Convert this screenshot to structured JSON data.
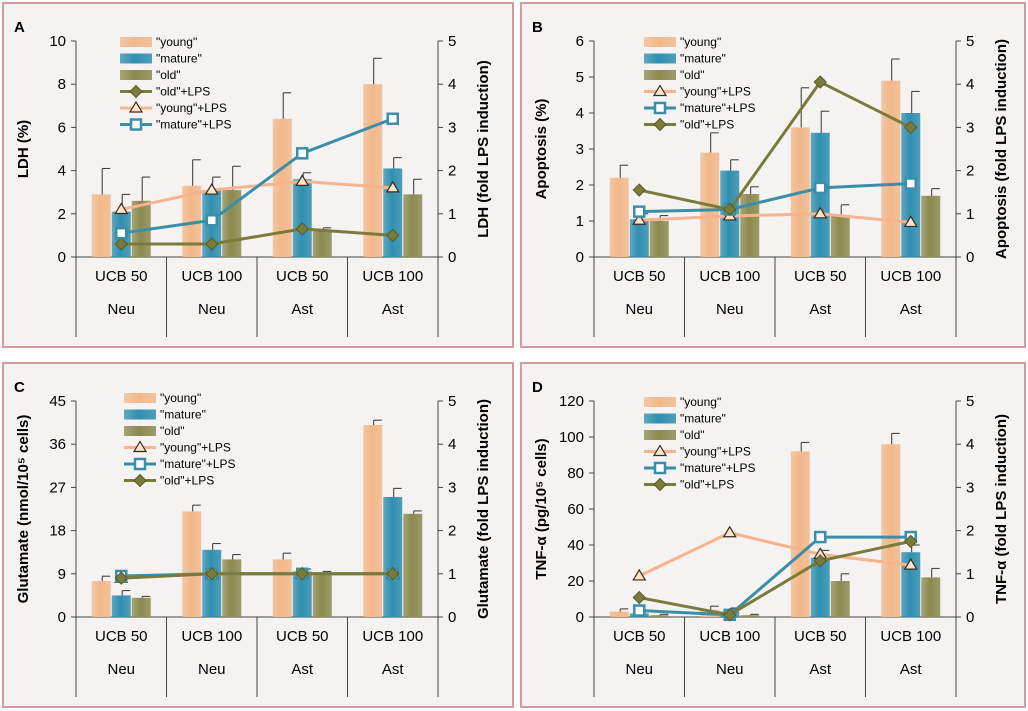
{
  "colors": {
    "young": "#f2b88a",
    "mature": "#2f8fb0",
    "old": "#8c8a4f",
    "young_lps": "#f6b48e",
    "mature_lps": "#3b8ea8",
    "old_lps": "#7a7a3a",
    "border": "#d79a9a"
  },
  "chart_data": [
    {
      "id": "A",
      "type": "bar+line",
      "ylabel": "LDH (%)",
      "y2label": "LDH (fold LPS induction)",
      "ylim": [
        0,
        10
      ],
      "yticks": [
        0,
        2,
        4,
        6,
        8,
        10
      ],
      "y2lim": [
        0,
        5
      ],
      "y2ticks": [
        0,
        1,
        2,
        3,
        4,
        5
      ],
      "categories": [
        "UCB 50",
        "UCB 100",
        "UCB 50",
        "UCB 100"
      ],
      "groups": [
        "Neu",
        "Neu",
        "Ast",
        "Ast"
      ],
      "bars": [
        {
          "name": "\"young\"",
          "values": [
            2.9,
            3.3,
            6.4,
            8.0
          ],
          "errors": [
            1.2,
            1.2,
            1.2,
            1.2
          ]
        },
        {
          "name": "\"mature\"",
          "values": [
            2.1,
            3.1,
            3.6,
            4.1
          ],
          "errors": [
            0.8,
            0.6,
            0.3,
            0.5
          ]
        },
        {
          "name": "\"old\"",
          "values": [
            2.6,
            3.1,
            1.2,
            2.9
          ],
          "errors": [
            1.1,
            1.1,
            0.15,
            0.7
          ]
        }
      ],
      "lines": [
        {
          "name": "\"old\"+LPS",
          "style": "old",
          "values": [
            0.3,
            0.3,
            0.65,
            0.5
          ]
        },
        {
          "name": "\"young\"+LPS",
          "style": "young",
          "values": [
            1.1,
            1.55,
            1.75,
            1.6
          ]
        },
        {
          "name": "\"mature\"+LPS",
          "style": "mature",
          "values": [
            0.55,
            0.85,
            2.4,
            3.2
          ]
        }
      ]
    },
    {
      "id": "B",
      "type": "bar+line",
      "ylabel": "Apoptosis (%)",
      "y2label": "Apoptosis  (fold LPS induction)",
      "ylim": [
        0,
        6
      ],
      "yticks": [
        0,
        1,
        2,
        3,
        4,
        5,
        6
      ],
      "y2lim": [
        0,
        5
      ],
      "y2ticks": [
        0,
        1,
        2,
        3,
        4,
        5
      ],
      "categories": [
        "UCB 50",
        "UCB 100",
        "UCB 50",
        "UCB 100"
      ],
      "groups": [
        "Neu",
        "Neu",
        "Ast",
        "Ast"
      ],
      "bars": [
        {
          "name": "\"young\"",
          "values": [
            2.2,
            2.9,
            3.6,
            4.9
          ],
          "errors": [
            0.35,
            0.55,
            1.1,
            0.6
          ]
        },
        {
          "name": "\"mature\"",
          "values": [
            1.05,
            2.4,
            3.45,
            4.0
          ],
          "errors": [
            0.15,
            0.3,
            0.6,
            0.6
          ]
        },
        {
          "name": "\"old\"",
          "values": [
            1.0,
            1.75,
            1.15,
            1.7
          ],
          "errors": [
            0.15,
            0.2,
            0.3,
            0.2
          ]
        }
      ],
      "lines": [
        {
          "name": "\"young\"+LPS",
          "style": "young",
          "values": [
            0.85,
            0.95,
            1.0,
            0.8
          ]
        },
        {
          "name": "\"mature\"+LPS",
          "style": "mature",
          "values": [
            1.05,
            1.1,
            1.6,
            1.7
          ]
        },
        {
          "name": "\"old\"+LPS",
          "style": "old",
          "values": [
            1.55,
            1.1,
            4.05,
            3.0
          ]
        }
      ]
    },
    {
      "id": "C",
      "type": "bar+line",
      "ylabel": "Glutamate (nmol/10⁵ cells)",
      "y2label": "Glutamate (fold LPS induction)",
      "ylim": [
        0,
        45
      ],
      "yticks": [
        0,
        9,
        18,
        27,
        36,
        45
      ],
      "y2lim": [
        0,
        5
      ],
      "y2ticks": [
        0,
        1,
        2,
        3,
        4,
        5
      ],
      "categories": [
        "UCB 50",
        "UCB 100",
        "UCB 50",
        "UCB 100"
      ],
      "groups": [
        "Neu",
        "Neu",
        "Ast",
        "Ast"
      ],
      "bars": [
        {
          "name": "\"young\"",
          "values": [
            7.5,
            22,
            12,
            40
          ],
          "errors": [
            1.0,
            1.3,
            1.3,
            1.0
          ]
        },
        {
          "name": "\"mature\"",
          "values": [
            4.5,
            14,
            9.5,
            25
          ],
          "errors": [
            1.0,
            1.3,
            0.5,
            1.8
          ]
        },
        {
          "name": "\"old\"",
          "values": [
            4,
            12,
            9.2,
            21.5
          ],
          "errors": [
            0.3,
            1.0,
            0.3,
            0.6
          ]
        }
      ],
      "lines": [
        {
          "name": "\"young\"+LPS",
          "style": "young",
          "values": [
            0.9,
            1.0,
            1.0,
            1.0
          ]
        },
        {
          "name": "\"mature\"+LPS",
          "style": "mature",
          "values": [
            0.95,
            1.0,
            1.0,
            1.0
          ]
        },
        {
          "name": "\"old\"+LPS",
          "style": "old",
          "values": [
            0.9,
            1.0,
            1.0,
            1.0
          ]
        }
      ]
    },
    {
      "id": "D",
      "type": "bar+line",
      "ylabel": "TNF-α (pg/10⁵ cells)",
      "y2label": "TNF-α (fold LPS induction)",
      "ylim": [
        0,
        120
      ],
      "yticks": [
        0,
        20,
        40,
        60,
        80,
        100,
        120
      ],
      "y2lim": [
        0,
        5
      ],
      "y2ticks": [
        0,
        1,
        2,
        3,
        4,
        5
      ],
      "categories": [
        "UCB 50",
        "UCB 100",
        "UCB 50",
        "UCB 100"
      ],
      "groups": [
        "Neu",
        "Neu",
        "Ast",
        "Ast"
      ],
      "bars": [
        {
          "name": "\"young\"",
          "values": [
            3,
            4,
            92,
            96
          ],
          "errors": [
            1.5,
            2,
            5,
            6
          ]
        },
        {
          "name": "\"mature\"",
          "values": [
            2,
            3,
            33,
            36
          ],
          "errors": [
            1,
            2,
            4,
            4
          ]
        },
        {
          "name": "\"old\"",
          "values": [
            1,
            1,
            20,
            22
          ],
          "errors": [
            0.5,
            0.5,
            4,
            5
          ]
        }
      ],
      "lines": [
        {
          "name": "\"young\"+LPS",
          "style": "young",
          "values": [
            0.95,
            1.95,
            1.45,
            1.2
          ]
        },
        {
          "name": "\"mature\"+LPS",
          "style": "mature",
          "values": [
            0.15,
            0.05,
            1.85,
            1.85
          ]
        },
        {
          "name": "\"old\"+LPS",
          "style": "old",
          "values": [
            0.45,
            0.05,
            1.3,
            1.75
          ]
        }
      ]
    }
  ]
}
